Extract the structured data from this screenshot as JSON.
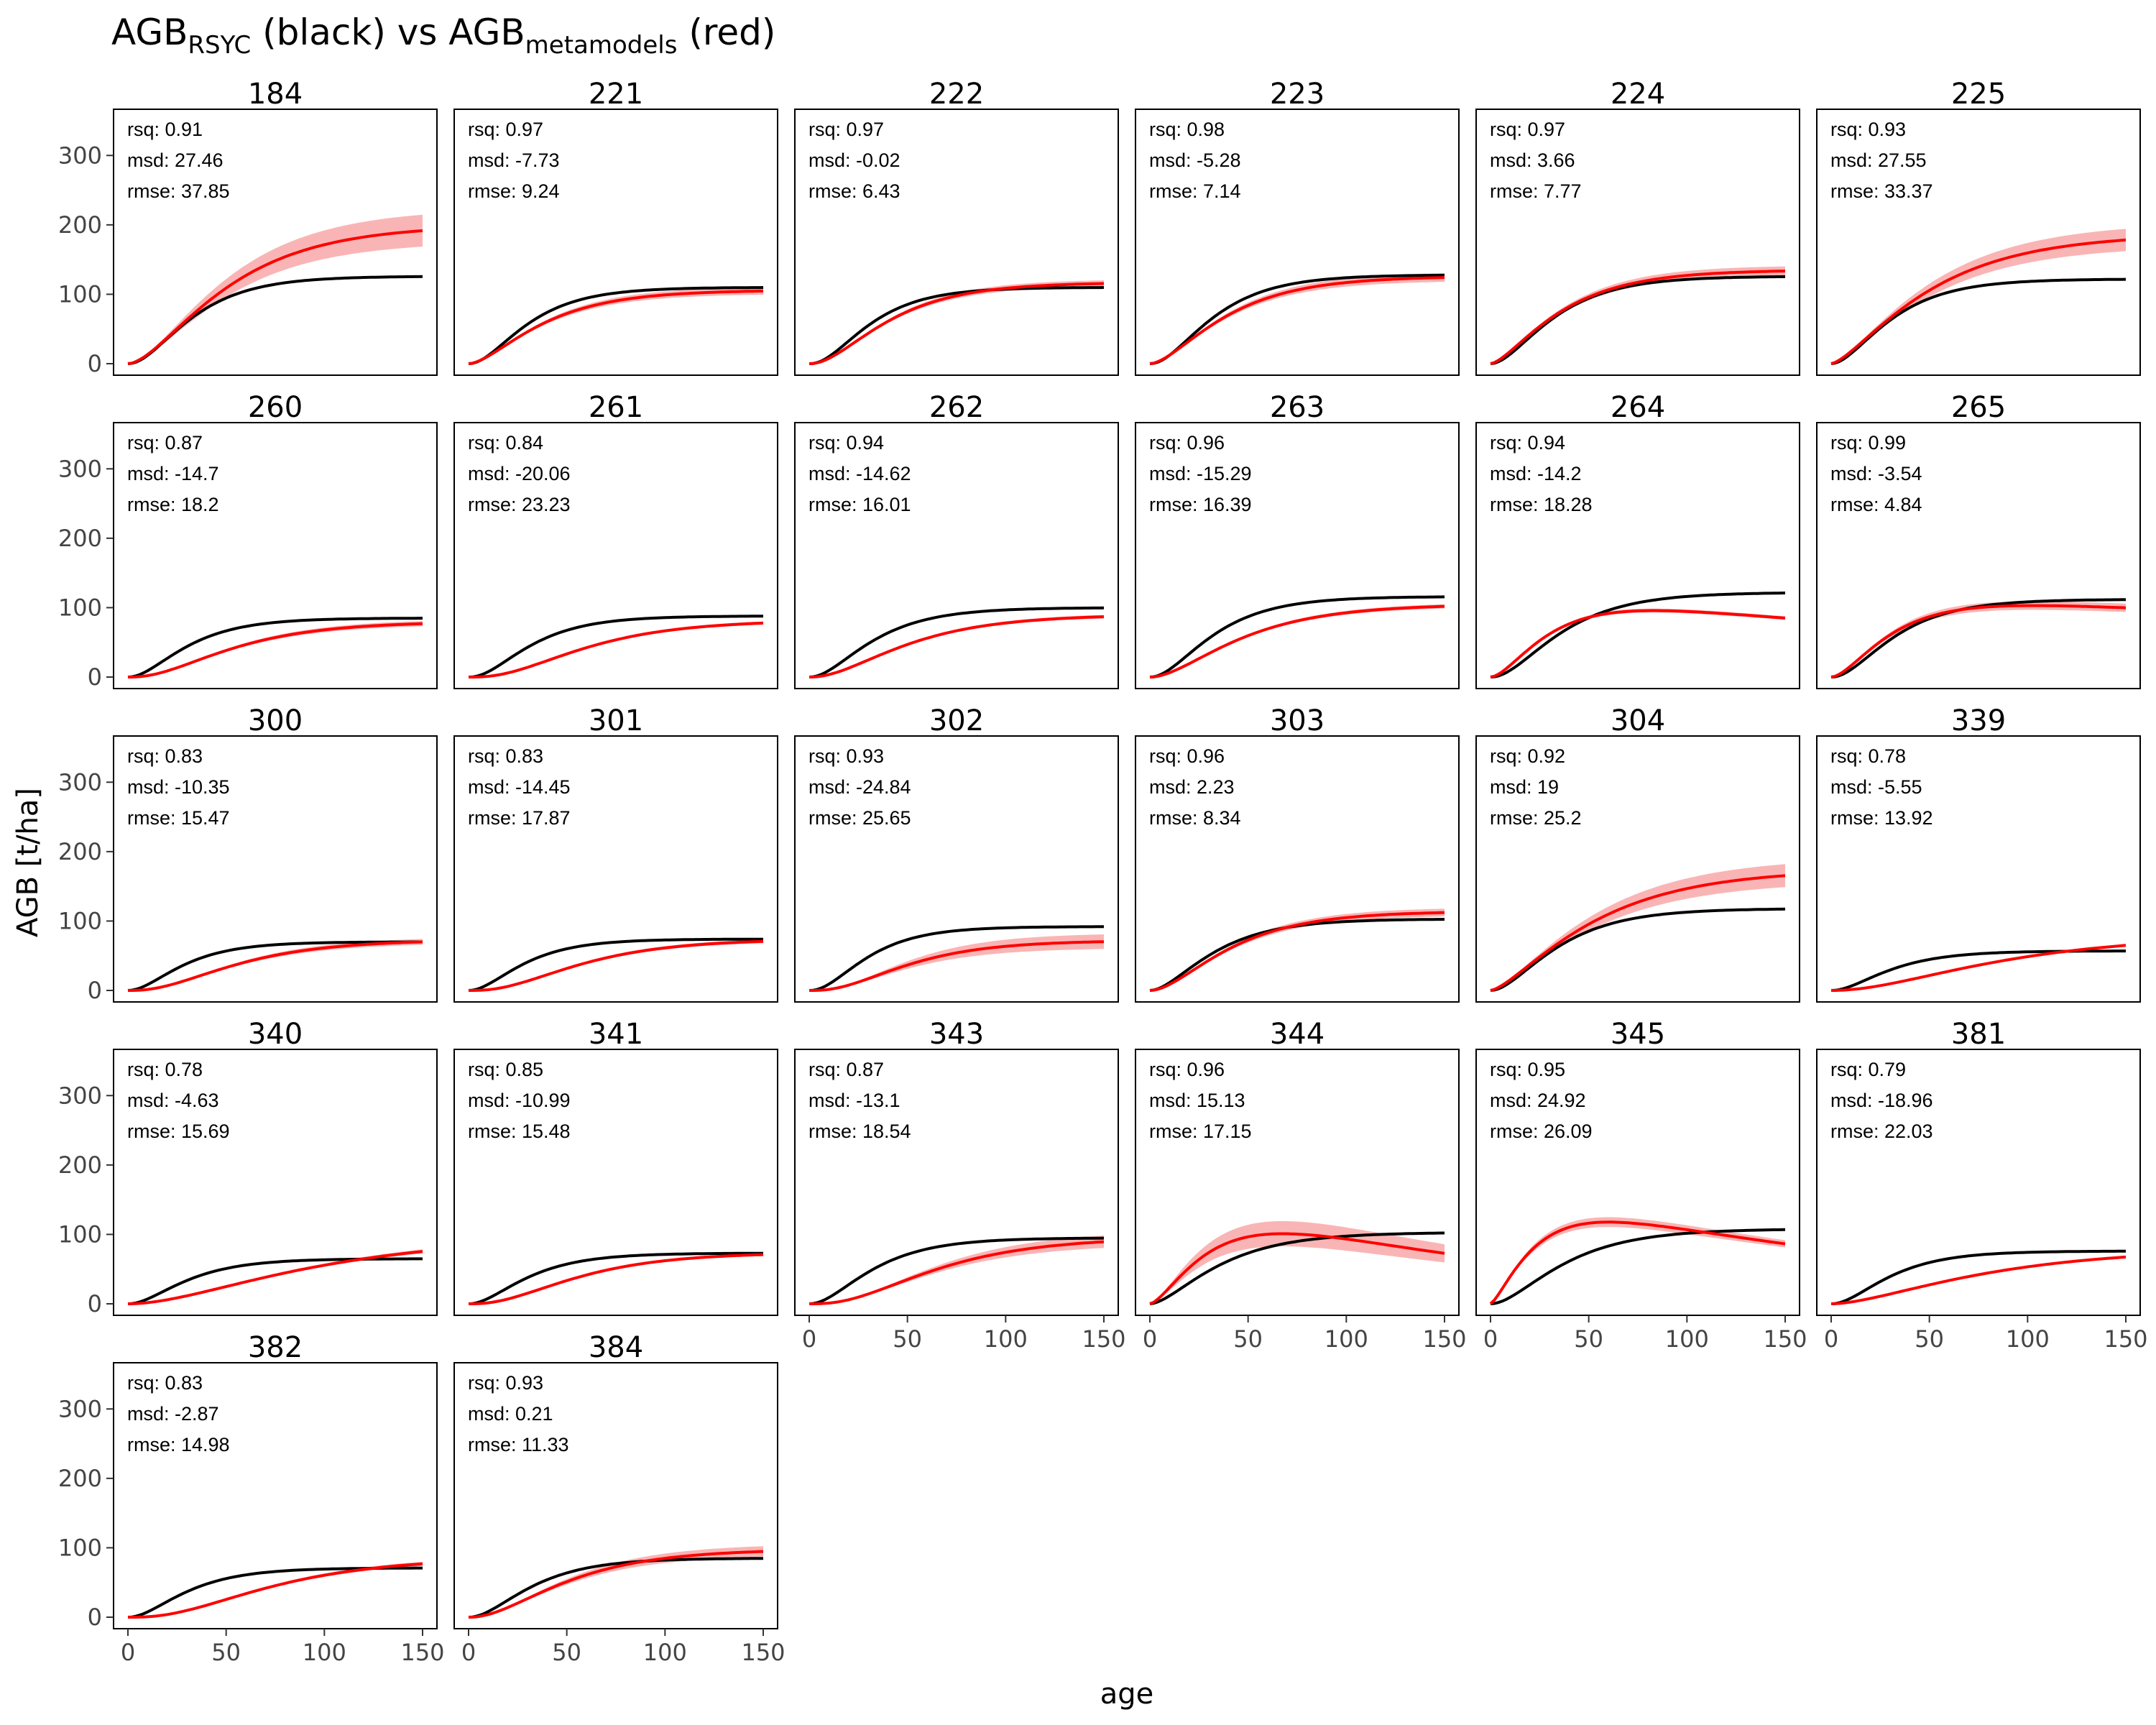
{
  "chart_data": {
    "type": "line",
    "title": {
      "base1": "AGB",
      "sub1": "RSYC",
      "text1": " (black) vs ",
      "base2": "AGB",
      "sub2": "metamodels",
      "text2": " (red)"
    },
    "xlabel": "age",
    "ylabel": "AGB [t/ha]",
    "xlim": [
      0,
      150
    ],
    "ylim": [
      0,
      350
    ],
    "x_ticks": [
      0,
      50,
      100,
      150
    ],
    "y_ticks": [
      0,
      100,
      200,
      300
    ],
    "grid": false,
    "layout": {
      "columns": 6
    },
    "series_colors": {
      "rsyc": "#000000",
      "metamodels": "#ff0000",
      "band": "#f8a8a8"
    },
    "panels": [
      {
        "id": "184",
        "rsq": "rsq: 0.91",
        "msd": "msd: 27.46",
        "rmse": "rmse: 37.85",
        "black": {
          "A": 126,
          "k": 0.042,
          "p": 2.2
        },
        "red": {
          "A": 200,
          "k": 0.025,
          "p": 1.8,
          "peak": 0
        },
        "band": 0.12
      },
      {
        "id": "221",
        "rsq": "rsq: 0.97",
        "msd": "msd: -7.73",
        "rmse": "rmse: 9.24",
        "black": {
          "A": 110,
          "k": 0.045,
          "p": 2.2
        },
        "red": {
          "A": 106,
          "k": 0.033,
          "p": 1.8,
          "peak": 0
        },
        "band": 0.05
      },
      {
        "id": "222",
        "rsq": "rsq: 0.97",
        "msd": "msd: -0.02",
        "rmse": "rmse: 6.43",
        "black": {
          "A": 110,
          "k": 0.046,
          "p": 2.4
        },
        "red": {
          "A": 117,
          "k": 0.034,
          "p": 2.2,
          "peak": 0
        },
        "band": 0.04
      },
      {
        "id": "223",
        "rsq": "rsq: 0.98",
        "msd": "msd: -5.28",
        "rmse": "rmse: 7.14",
        "black": {
          "A": 128,
          "k": 0.042,
          "p": 2.2
        },
        "red": {
          "A": 126,
          "k": 0.032,
          "p": 1.8,
          "peak": 0
        },
        "band": 0.05
      },
      {
        "id": "224",
        "rsq": "rsq: 0.97",
        "msd": "msd: 3.66",
        "rmse": "rmse: 7.77",
        "black": {
          "A": 126,
          "k": 0.04,
          "p": 2.0
        },
        "red": {
          "A": 135,
          "k": 0.033,
          "p": 1.6,
          "peak": 0
        },
        "band": 0.05
      },
      {
        "id": "225",
        "rsq": "rsq: 0.93",
        "msd": "msd: 27.55",
        "rmse": "rmse: 33.37",
        "black": {
          "A": 122,
          "k": 0.042,
          "p": 2.0
        },
        "red": {
          "A": 187,
          "k": 0.023,
          "p": 1.5,
          "peak": 0
        },
        "band": 0.09
      },
      {
        "id": "260",
        "rsq": "rsq: 0.87",
        "msd": "msd: -14.7",
        "rmse": "rmse: 18.2",
        "black": {
          "A": 85,
          "k": 0.045,
          "p": 2.2
        },
        "red": {
          "A": 80,
          "k": 0.028,
          "p": 2.6,
          "peak": 0
        },
        "band": 0.05
      },
      {
        "id": "261",
        "rsq": "rsq: 0.84",
        "msd": "msd: -20.06",
        "rmse": "rmse: 23.23",
        "black": {
          "A": 88,
          "k": 0.045,
          "p": 2.4
        },
        "red": {
          "A": 82,
          "k": 0.027,
          "p": 3.0,
          "peak": 0
        },
        "band": 0.03
      },
      {
        "id": "262",
        "rsq": "rsq: 0.94",
        "msd": "msd: -14.62",
        "rmse": "rmse: 16.01",
        "black": {
          "A": 100,
          "k": 0.042,
          "p": 2.2
        },
        "red": {
          "A": 90,
          "k": 0.028,
          "p": 2.3,
          "peak": 0
        },
        "band": 0.03
      },
      {
        "id": "263",
        "rsq": "rsq: 0.96",
        "msd": "msd: -15.29",
        "rmse": "rmse: 16.39",
        "black": {
          "A": 116,
          "k": 0.042,
          "p": 2.2
        },
        "red": {
          "A": 105,
          "k": 0.028,
          "p": 2.0,
          "peak": 0
        },
        "band": 0.03
      },
      {
        "id": "264",
        "rsq": "rsq: 0.94",
        "msd": "msd: -14.2",
        "rmse": "rmse: 18.28",
        "black": {
          "A": 122,
          "k": 0.038,
          "p": 2.2
        },
        "red": {
          "A": 128,
          "k": 0.04,
          "p": 1.8,
          "peak": 0.0027
        },
        "band": 0.03
      },
      {
        "id": "265",
        "rsq": "rsq: 0.99",
        "msd": "msd: -3.54",
        "rmse": "rmse: 4.84",
        "black": {
          "A": 112,
          "k": 0.042,
          "p": 2.2
        },
        "red": {
          "A": 120,
          "k": 0.04,
          "p": 1.8,
          "peak": 0.0012
        },
        "band": 0.06
      },
      {
        "id": "300",
        "rsq": "rsq: 0.83",
        "msd": "msd: -10.35",
        "rmse": "rmse: 15.47",
        "black": {
          "A": 70,
          "k": 0.048,
          "p": 2.2
        },
        "red": {
          "A": 73,
          "k": 0.028,
          "p": 2.8,
          "peak": 0
        },
        "band": 0.06
      },
      {
        "id": "301",
        "rsq": "rsq: 0.83",
        "msd": "msd: -14.45",
        "rmse": "rmse: 17.87",
        "black": {
          "A": 74,
          "k": 0.048,
          "p": 2.2
        },
        "red": {
          "A": 74,
          "k": 0.028,
          "p": 3.0,
          "peak": 0
        },
        "band": 0.04
      },
      {
        "id": "302",
        "rsq": "rsq: 0.93",
        "msd": "msd: -24.84",
        "rmse": "rmse: 25.65",
        "black": {
          "A": 92,
          "k": 0.048,
          "p": 2.4
        },
        "red": {
          "A": 72,
          "k": 0.032,
          "p": 3.0,
          "peak": 0
        },
        "band": 0.15
      },
      {
        "id": "303",
        "rsq": "rsq: 0.96",
        "msd": "msd: 2.23",
        "rmse": "rmse: 8.34",
        "black": {
          "A": 103,
          "k": 0.04,
          "p": 2.0
        },
        "red": {
          "A": 114,
          "k": 0.032,
          "p": 2.0,
          "peak": 0
        },
        "band": 0.05
      },
      {
        "id": "304",
        "rsq": "rsq: 0.92",
        "msd": "msd: 19",
        "rmse": "rmse: 25.2",
        "black": {
          "A": 118,
          "k": 0.038,
          "p": 2.0
        },
        "red": {
          "A": 175,
          "k": 0.022,
          "p": 1.5,
          "peak": 0
        },
        "band": 0.1
      },
      {
        "id": "339",
        "rsq": "rsq: 0.78",
        "msd": "msd: -5.55",
        "rmse": "rmse: 13.92",
        "black": {
          "A": 57,
          "k": 0.045,
          "p": 2.2
        },
        "red": {
          "A": 80,
          "k": 0.016,
          "p": 2.2,
          "peak": 0
        },
        "band": 0.03
      },
      {
        "id": "340",
        "rsq": "rsq: 0.78",
        "msd": "msd: -4.63",
        "rmse": "rmse: 15.69",
        "black": {
          "A": 65,
          "k": 0.045,
          "p": 2.2
        },
        "red": {
          "A": 98,
          "k": 0.014,
          "p": 2.0,
          "peak": 0
        },
        "band": 0.04
      },
      {
        "id": "341",
        "rsq": "rsq: 0.85",
        "msd": "msd: -10.99",
        "rmse": "rmse: 15.48",
        "black": {
          "A": 73,
          "k": 0.045,
          "p": 2.2
        },
        "red": {
          "A": 74,
          "k": 0.028,
          "p": 2.8,
          "peak": 0
        },
        "band": 0.03
      },
      {
        "id": "343",
        "rsq": "rsq: 0.87",
        "msd": "msd: -13.1",
        "rmse": "rmse: 18.54",
        "black": {
          "A": 95,
          "k": 0.042,
          "p": 2.2
        },
        "red": {
          "A": 96,
          "k": 0.025,
          "p": 3.0,
          "peak": 0
        },
        "band": 0.1
      },
      {
        "id": "344",
        "rsq": "rsq: 0.96",
        "msd": "msd: 15.13",
        "rmse": "rmse: 17.15",
        "black": {
          "A": 103,
          "k": 0.035,
          "p": 1.8
        },
        "red": {
          "A": 175,
          "k": 0.035,
          "p": 1.6,
          "peak": 0.0058
        },
        "band": 0.18
      },
      {
        "id": "345",
        "rsq": "rsq: 0.95",
        "msd": "msd: 24.92",
        "rmse": "rmse: 26.09",
        "black": {
          "A": 108,
          "k": 0.035,
          "p": 2.0
        },
        "red": {
          "A": 170,
          "k": 0.045,
          "p": 1.4,
          "peak": 0.0045
        },
        "band": 0.06
      },
      {
        "id": "381",
        "rsq": "rsq: 0.79",
        "msd": "msd: -18.96",
        "rmse": "rmse: 22.03",
        "black": {
          "A": 76,
          "k": 0.045,
          "p": 2.2
        },
        "red": {
          "A": 80,
          "k": 0.016,
          "p": 1.8,
          "peak": 0
        },
        "band": 0.03
      },
      {
        "id": "382",
        "rsq": "rsq: 0.83",
        "msd": "msd: -2.87",
        "rmse": "rmse: 14.98",
        "black": {
          "A": 71,
          "k": 0.045,
          "p": 2.2
        },
        "red": {
          "A": 86,
          "k": 0.022,
          "p": 3.0,
          "peak": 0
        },
        "band": 0.04
      },
      {
        "id": "384",
        "rsq": "rsq: 0.93",
        "msd": "msd: 0.21",
        "rmse": "rmse: 11.33",
        "black": {
          "A": 85,
          "k": 0.042,
          "p": 2.2
        },
        "red": {
          "A": 98,
          "k": 0.028,
          "p": 2.3,
          "peak": 0
        },
        "band": 0.08
      }
    ]
  }
}
